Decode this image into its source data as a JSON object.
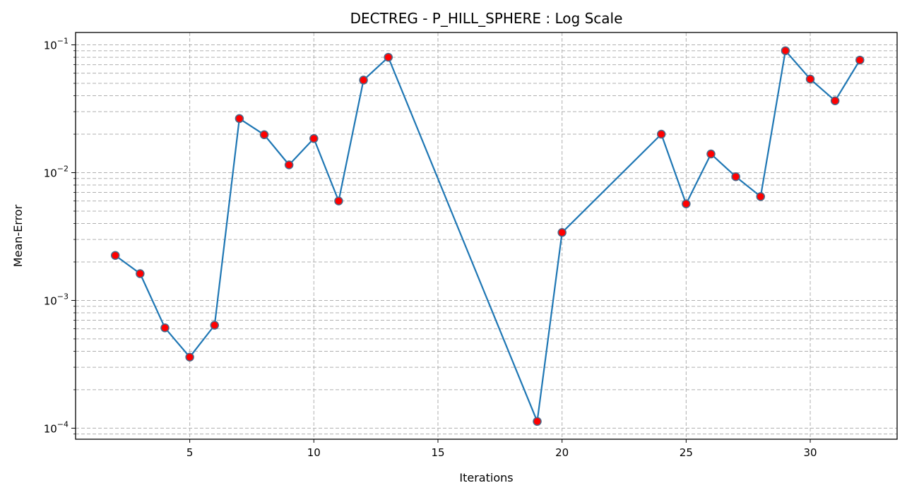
{
  "chart_data": {
    "type": "line",
    "title": "DECTREG - P_HILL_SPHERE : Log Scale",
    "xlabel": "Iterations",
    "ylabel": "Mean-Error",
    "yscale": "log",
    "xlim": [
      0.4,
      33.5
    ],
    "ylim": [
      8.2e-05,
      0.125
    ],
    "x_ticks": [
      5,
      10,
      15,
      20,
      25,
      30
    ],
    "y_ticks": [
      {
        "value": 0.0001,
        "base": "10",
        "exp": "−4"
      },
      {
        "value": 0.001,
        "base": "10",
        "exp": "−3"
      },
      {
        "value": 0.01,
        "base": "10",
        "exp": "−2"
      },
      {
        "value": 0.1,
        "base": "10",
        "exp": "−1"
      }
    ],
    "grid": true,
    "series": [
      {
        "line_color": "#1f77b4",
        "marker_face": "#ff0000",
        "marker_edge": "#4a6a8a",
        "x": [
          2,
          3,
          4,
          5,
          6,
          7,
          8,
          9,
          10,
          11,
          12,
          13,
          19,
          20,
          24,
          25,
          26,
          27,
          28,
          29,
          30,
          31,
          32
        ],
        "y": [
          0.00225,
          0.00162,
          0.00061,
          0.00036,
          0.00064,
          0.0265,
          0.0198,
          0.0115,
          0.0185,
          0.006,
          0.053,
          0.08,
          0.000113,
          0.0034,
          0.02,
          0.0057,
          0.014,
          0.0093,
          0.0065,
          0.09,
          0.054,
          0.0365,
          0.076
        ]
      }
    ]
  }
}
